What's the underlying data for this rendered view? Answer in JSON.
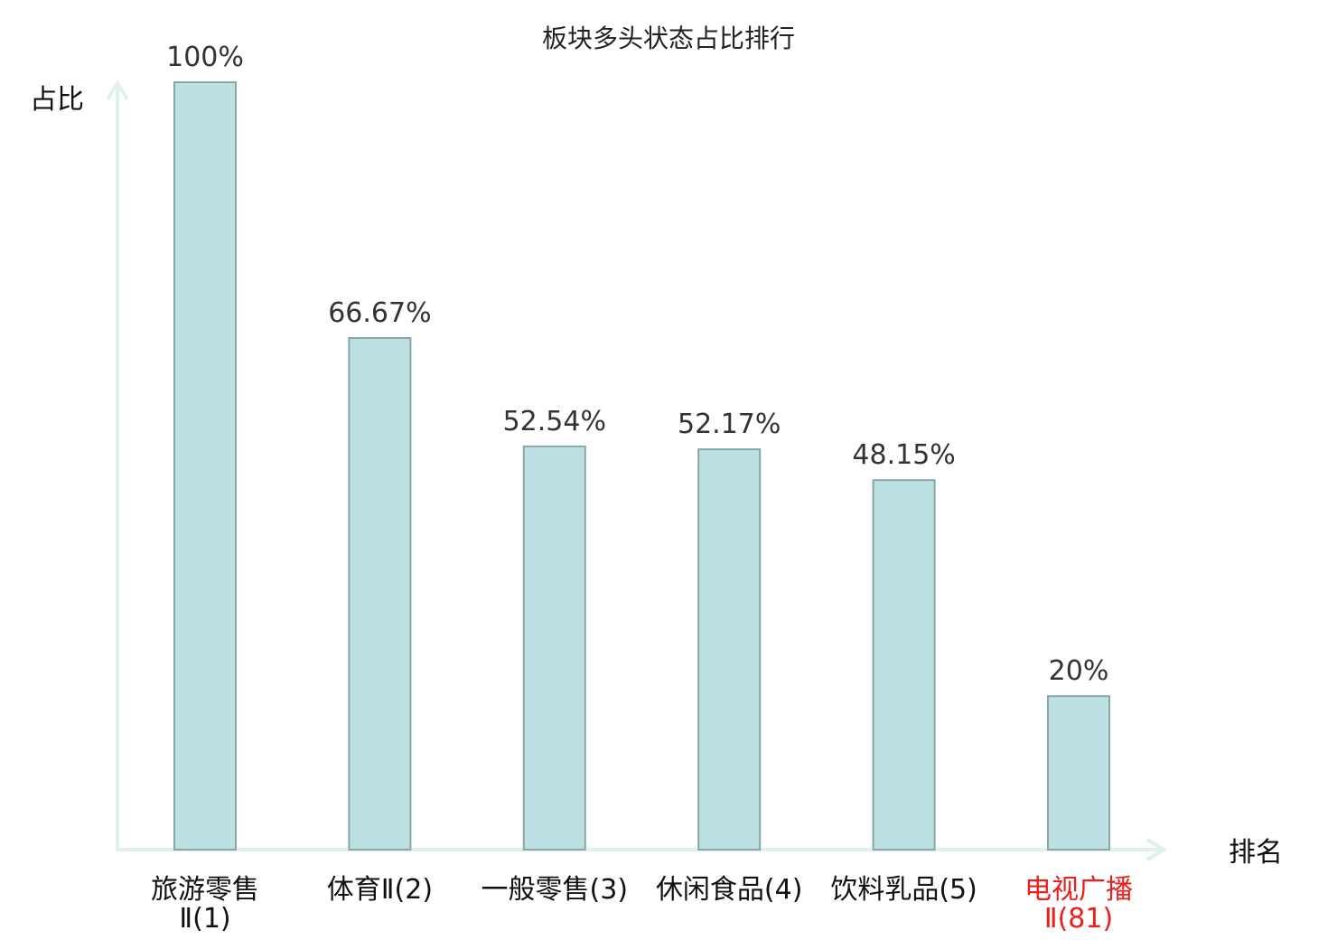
{
  "chart_data": {
    "type": "bar",
    "title": "板块多头状态占比排行",
    "ylabel": "占比",
    "xlabel": "排名",
    "ylim": [
      0,
      100
    ],
    "grid": false,
    "categories": [
      {
        "line1": "旅游零售",
        "line2": "Ⅱ(1)"
      },
      {
        "line1": "体育Ⅱ(2)",
        "line2": ""
      },
      {
        "line1": "一般零售(3)",
        "line2": ""
      },
      {
        "line1": "休闲食品(4)",
        "line2": ""
      },
      {
        "line1": "饮料乳品(5)",
        "line2": ""
      },
      {
        "line1": "电视广播",
        "line2": "Ⅱ(81)"
      }
    ],
    "values": [
      100,
      66.67,
      52.54,
      52.17,
      48.15,
      20
    ],
    "value_labels": [
      "100%",
      "66.67%",
      "52.54%",
      "52.17%",
      "48.15%",
      "20%"
    ],
    "highlight_index": 5,
    "colors": {
      "bar_fill": "#bde0e3",
      "bar_stroke": "#8aa5a8",
      "axis": "#dff0ee",
      "label": "#111111",
      "highlight": "#e8211c"
    }
  }
}
